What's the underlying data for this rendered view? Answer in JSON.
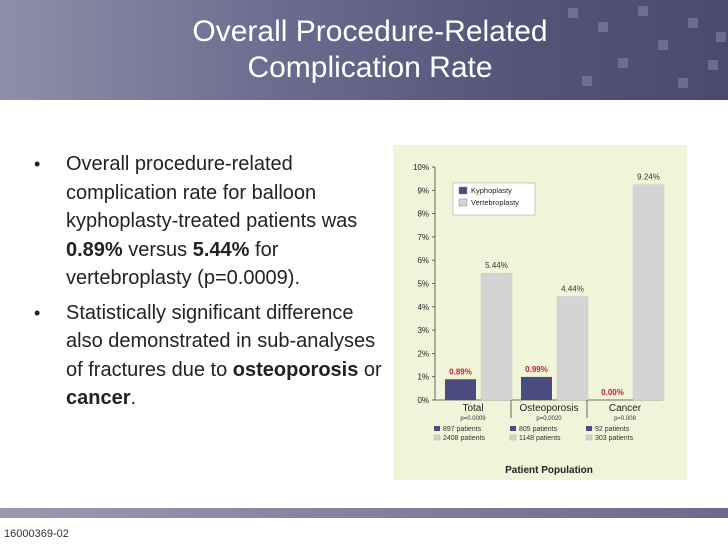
{
  "slide": {
    "title_line1": "Overall Procedure-Related",
    "title_line2": "Complication Rate",
    "footer_id": "16000369-02"
  },
  "bullets": [
    {
      "parts": [
        {
          "text": "Overall procedure-related complication rate for balloon kyphoplasty-treated patients was ",
          "bold": false
        },
        {
          "text": "0.89%",
          "bold": true
        },
        {
          "text": " versus ",
          "bold": false
        },
        {
          "text": "5.44%",
          "bold": true
        },
        {
          "text": " for vertebroplasty (p=0.0009).",
          "bold": false
        }
      ]
    },
    {
      "parts": [
        {
          "text": "Statistically significant difference also demonstrated in sub-analyses of fractures due to ",
          "bold": false
        },
        {
          "text": "osteoporosis",
          "bold": true
        },
        {
          "text": " or ",
          "bold": false
        },
        {
          "text": "cancer",
          "bold": true
        },
        {
          "text": ".",
          "bold": false
        }
      ]
    }
  ],
  "chart_data": {
    "type": "bar",
    "categories": [
      "Total",
      "Osteoporosis",
      "Cancer"
    ],
    "category_pvalues": [
      "p=0.0009",
      "p=0.0020",
      "p=0.008"
    ],
    "series": [
      {
        "name": "Kyphoplasty",
        "values": [
          0.89,
          0.99,
          0.0
        ],
        "labels": [
          "0.89%",
          "0.99%",
          "0.00%"
        ],
        "color": "#4b4b80",
        "label_color": "#c0262b",
        "patients": [
          "897 patients",
          "805 patients",
          "92 patients"
        ]
      },
      {
        "name": "Vertebroplasty",
        "values": [
          5.44,
          4.44,
          9.24
        ],
        "labels": [
          "5.44%",
          "4.44%",
          "9.24%"
        ],
        "color": "#d4d4d4",
        "label_color": "#333333",
        "patients": [
          "2408 patients",
          "1148 patients",
          "303 patients"
        ]
      }
    ],
    "ylim": [
      0,
      10
    ],
    "yticks": [
      "0%",
      "1%",
      "2%",
      "3%",
      "4%",
      "5%",
      "6%",
      "7%",
      "8%",
      "9%",
      "10%"
    ],
    "xlabel": "Patient Population",
    "legend_position": "top-left",
    "background": "#f0f4d8"
  }
}
